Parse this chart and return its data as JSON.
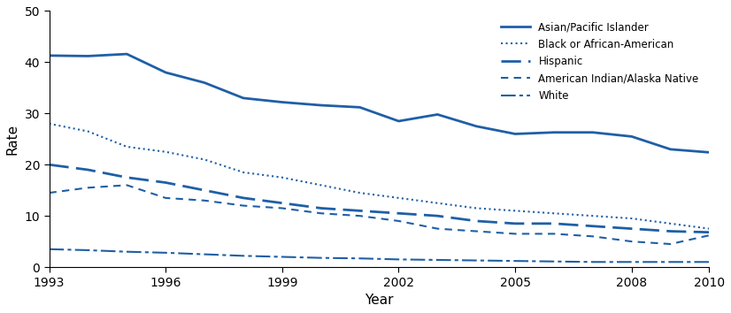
{
  "years": [
    1993,
    1994,
    1995,
    1996,
    1997,
    1998,
    1999,
    2000,
    2001,
    2002,
    2003,
    2004,
    2005,
    2006,
    2007,
    2008,
    2009,
    2010
  ],
  "asian_pacific": [
    41.3,
    41.2,
    41.6,
    38.0,
    36.0,
    33.0,
    32.2,
    31.6,
    31.2,
    28.5,
    29.8,
    27.5,
    26.0,
    26.3,
    26.3,
    25.5,
    23.0,
    22.4
  ],
  "black_african": [
    28.0,
    26.5,
    23.5,
    22.5,
    21.0,
    18.5,
    17.5,
    16.0,
    14.5,
    13.5,
    12.5,
    11.5,
    11.0,
    10.5,
    10.0,
    9.5,
    8.5,
    7.5
  ],
  "hispanic": [
    20.0,
    19.0,
    17.5,
    16.5,
    15.0,
    13.5,
    12.5,
    11.5,
    11.0,
    10.5,
    10.0,
    9.0,
    8.5,
    8.5,
    8.0,
    7.5,
    7.0,
    6.8
  ],
  "american_indian": [
    14.5,
    15.5,
    16.0,
    13.5,
    13.0,
    12.0,
    11.5,
    10.5,
    10.0,
    9.0,
    7.5,
    7.0,
    6.5,
    6.5,
    6.0,
    5.0,
    4.5,
    6.2
  ],
  "white": [
    3.5,
    3.3,
    3.0,
    2.8,
    2.5,
    2.2,
    2.0,
    1.8,
    1.7,
    1.5,
    1.4,
    1.3,
    1.2,
    1.1,
    1.0,
    1.0,
    1.0,
    1.0
  ],
  "color": "#1f5fa6",
  "ylim": [
    0,
    50
  ],
  "yticks": [
    0,
    10,
    20,
    30,
    40,
    50
  ],
  "xticks": [
    1993,
    1996,
    1999,
    2002,
    2005,
    2008,
    2010
  ],
  "xlabel": "Year",
  "ylabel": "Rate",
  "legend_labels": [
    "Asian/Pacific Islander",
    "Black or African-American",
    "Hispanic",
    "American Indian/Alaska Native",
    "White"
  ]
}
